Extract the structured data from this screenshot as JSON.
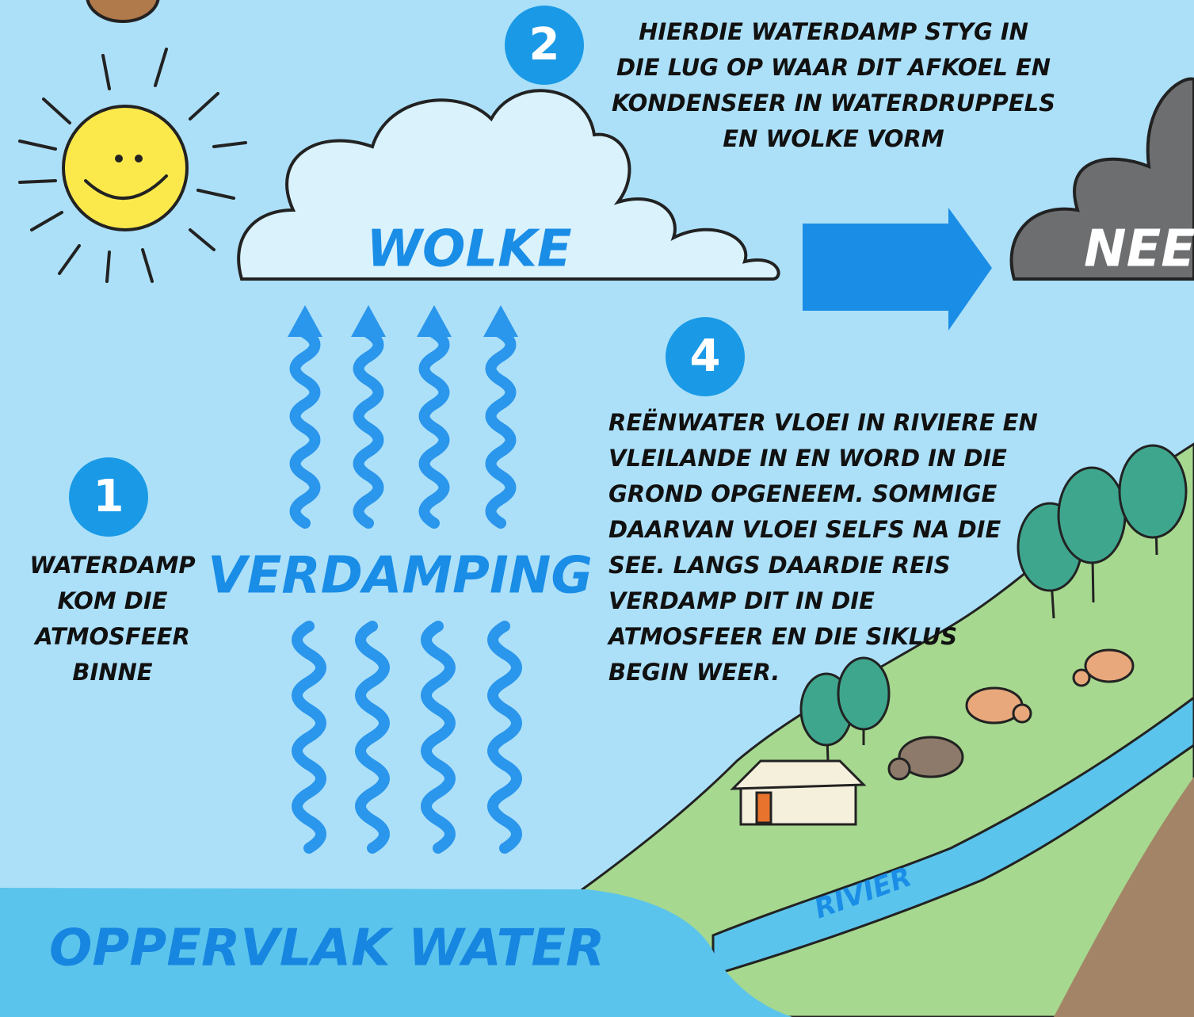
{
  "steps": [
    {
      "number": "1",
      "lines": [
        "WATERDAMP",
        "KOM DIE",
        "ATMOSFEER",
        "BINNE"
      ]
    },
    {
      "number": "2",
      "lines": [
        "HIERDIE WATERDAMP STYG IN",
        "DIE LUG OP WAAR DIT AFKOEL EN",
        "KONDENSEER IN WATERDRUPPELS",
        "EN WOLKE VORM"
      ]
    },
    {
      "number": "4",
      "lines": [
        "REËNWATER VLOEI IN RIVIERE EN",
        "VLEILANDE IN EN WORD IN DIE",
        "GROND OPGENEEM. SOMMIGE",
        "DAARVAN VLOEI SELFS NA DIE",
        "SEE. LANGS DAARDIE REIS",
        "VERDAMP DIT IN DIE",
        "ATMOSFEER EN DIE SIKLUS",
        "BEGIN WEER."
      ]
    }
  ],
  "labels": {
    "clouds": "WOLKE",
    "precipitation": "NEE",
    "evaporation": "VERDAMPING",
    "surface_water": "OPPERVLAK WATER",
    "river": "RIVIER"
  }
}
